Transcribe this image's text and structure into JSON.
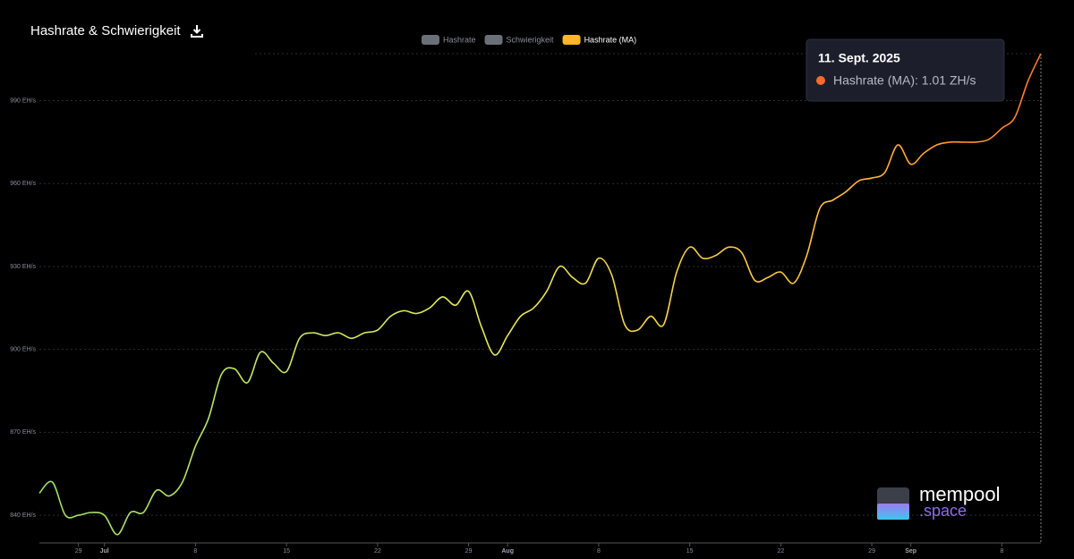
{
  "chart_data": {
    "type": "line",
    "title": "Hashrate & Schwierigkeit",
    "legend": [
      {
        "name": "Hashrate",
        "color": "#6b6f78"
      },
      {
        "name": "Schwierigkeit",
        "color": "#6b6f78"
      },
      {
        "name": "Hashrate (MA)",
        "color": "#ffb629"
      }
    ],
    "categories": [
      null,
      null,
      null,
      "29",
      null,
      "Jul",
      null,
      null,
      null,
      null,
      null,
      null,
      "8",
      null,
      null,
      null,
      null,
      null,
      null,
      "15",
      null,
      null,
      null,
      null,
      null,
      null,
      "22",
      null,
      null,
      null,
      null,
      null,
      null,
      "29",
      null,
      null,
      "Aug",
      null,
      null,
      null,
      null,
      null,
      null,
      "8",
      null,
      null,
      null,
      null,
      null,
      null,
      "15",
      null,
      null,
      null,
      null,
      null,
      null,
      "22",
      null,
      null,
      null,
      null,
      null,
      null,
      "29",
      null,
      null,
      "Sep",
      null,
      null,
      null,
      null,
      null,
      null,
      "8",
      null,
      null,
      null
    ],
    "series": [
      {
        "name": "Hashrate (MA)",
        "color": "#ffb629",
        "values": [
          848,
          852,
          840,
          840,
          841,
          840,
          833,
          841,
          841,
          849,
          847,
          852,
          865,
          875,
          891,
          893,
          888,
          899,
          895,
          892,
          904,
          906,
          905,
          906,
          904,
          906,
          907,
          912,
          914,
          913,
          915,
          919,
          916,
          921,
          908,
          898,
          905,
          912,
          915,
          921,
          930,
          926,
          924,
          933,
          927,
          909,
          907,
          912,
          909,
          928,
          937,
          933,
          934,
          937,
          935,
          925,
          926,
          928,
          924,
          934,
          951,
          954,
          957,
          961,
          962,
          964,
          974,
          967,
          971,
          974,
          975,
          975,
          975,
          976,
          980,
          984,
          997,
          1007
        ]
      }
    ],
    "ylim": [
      830,
      1007
    ],
    "yticks": [
      {
        "value": 840,
        "label": "840 EH/s"
      },
      {
        "value": 870,
        "label": "870 EH/s"
      },
      {
        "value": 900,
        "label": "900 EH/s"
      },
      {
        "value": 930,
        "label": "930 EH/s"
      },
      {
        "value": 960,
        "label": "960 EH/s"
      },
      {
        "value": 990,
        "label": "990 EH/s"
      }
    ],
    "grid": true,
    "tooltip": {
      "title": "11. Sept. 2025",
      "text": "Hashrate (MA): 1.01 ZH/s"
    }
  },
  "logo": {
    "name": "mempool",
    "suffix": ".space"
  }
}
